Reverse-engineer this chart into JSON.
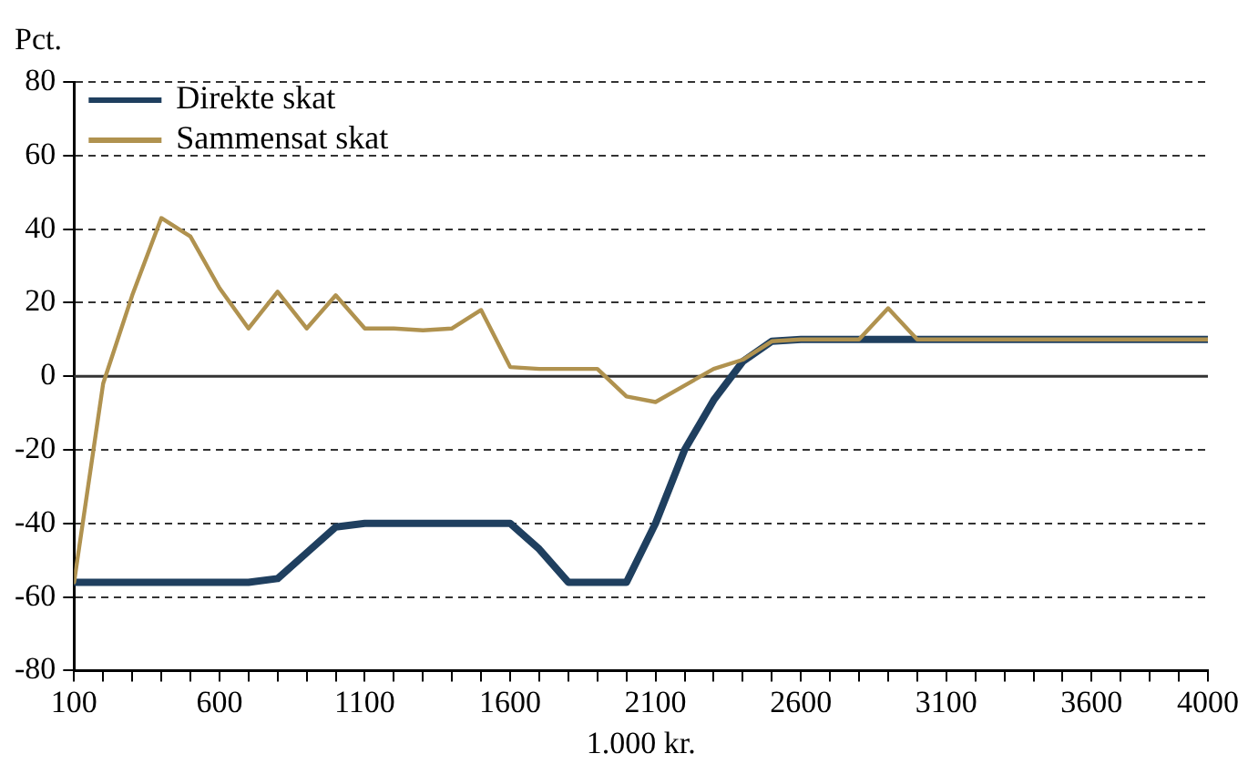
{
  "chart_data": {
    "type": "line",
    "ylabel": "Pct.",
    "xlabel": "1.000 kr.",
    "x": [
      100,
      200,
      300,
      400,
      500,
      600,
      700,
      800,
      900,
      1000,
      1100,
      1200,
      1300,
      1400,
      1500,
      1600,
      1700,
      1800,
      1900,
      2000,
      2100,
      2200,
      2300,
      2400,
      2500,
      2600,
      2700,
      2800,
      2900,
      3000,
      3100,
      3200,
      3300,
      3400,
      3500,
      3600,
      3700,
      3800,
      3900,
      4000
    ],
    "series": [
      {
        "name": "Direkte skat",
        "color": "#1f3f5f",
        "values": [
          -56,
          -56,
          -56,
          -56,
          -56,
          -56,
          -56,
          -55,
          -48,
          -41,
          -40,
          -40,
          -40,
          -40,
          -40,
          -40,
          -47,
          -56,
          -56,
          -56,
          -40,
          -20,
          -6.5,
          4,
          9.5,
          10,
          10,
          10,
          10,
          10,
          10,
          10,
          10,
          10,
          10,
          10,
          10,
          10,
          10,
          10
        ]
      },
      {
        "name": "Sammensat skat",
        "color": "#b0924f",
        "values": [
          -56,
          -2,
          22,
          43,
          38,
          24,
          13,
          23,
          13,
          22,
          13,
          13,
          12.5,
          13,
          18,
          2.5,
          2,
          2,
          2,
          -5.5,
          -7,
          -2.5,
          2,
          4.5,
          9.5,
          10,
          10,
          10,
          18.5,
          10,
          10,
          10,
          10,
          10,
          10,
          10,
          10,
          10,
          10,
          10
        ]
      }
    ],
    "xlim": [
      100,
      4000
    ],
    "xticks": [
      100,
      {
        "value": 200,
        "label": null
      },
      {
        "value": 300,
        "label": null
      },
      {
        "value": 400,
        "label": null
      },
      {
        "value": 500,
        "label": null
      },
      600,
      {
        "value": 700,
        "label": null
      },
      {
        "value": 800,
        "label": null
      },
      {
        "value": 900,
        "label": null
      },
      {
        "value": 1000,
        "label": null
      },
      1100,
      {
        "value": 1200,
        "label": null
      },
      {
        "value": 1300,
        "label": null
      },
      {
        "value": 1400,
        "label": null
      },
      {
        "value": 1500,
        "label": null
      },
      1600,
      {
        "value": 1700,
        "label": null
      },
      {
        "value": 1800,
        "label": null
      },
      {
        "value": 1900,
        "label": null
      },
      {
        "value": 2000,
        "label": null
      },
      2100,
      {
        "value": 2200,
        "label": null
      },
      {
        "value": 2300,
        "label": null
      },
      {
        "value": 2400,
        "label": null
      },
      {
        "value": 2500,
        "label": null
      },
      2600,
      {
        "value": 2700,
        "label": null
      },
      {
        "value": 2800,
        "label": null
      },
      {
        "value": 2900,
        "label": null
      },
      {
        "value": 3000,
        "label": null
      },
      3100,
      {
        "value": 3200,
        "label": null
      },
      {
        "value": 3300,
        "label": null
      },
      {
        "value": 3400,
        "label": null
      },
      {
        "value": 3500,
        "label": null
      },
      3600,
      {
        "value": 3700,
        "label": null
      },
      {
        "value": 3800,
        "label": null
      },
      {
        "value": 3900,
        "label": null
      },
      4000
    ],
    "ylim": [
      -80,
      80
    ],
    "yticks": [
      -80,
      -60,
      -40,
      -20,
      0,
      20,
      40,
      60,
      80
    ],
    "ref_lines": [
      {
        "axis": "y",
        "value": 0,
        "color": "#333333",
        "line_style": "solid"
      }
    ],
    "grid": "y",
    "legend": "top left",
    "marker": "none",
    "line_style": "solid"
  }
}
